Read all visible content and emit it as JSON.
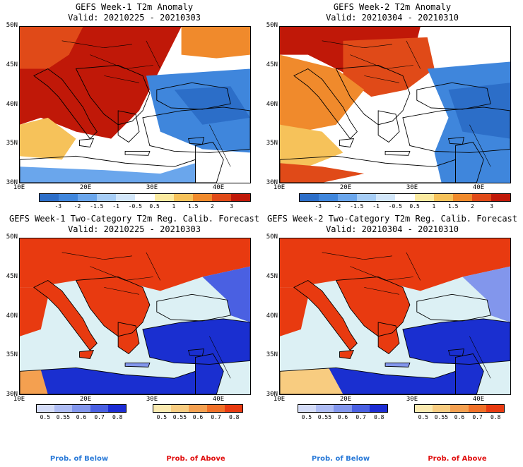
{
  "panels": [
    {
      "title": "GEFS Week-1 T2m Anomaly",
      "valid": "Valid: 20210225 - 20210303",
      "kind": "anomaly",
      "week": 1
    },
    {
      "title": "GEFS Week-2 T2m Anomaly",
      "valid": "Valid: 20210304 - 20210310",
      "kind": "anomaly",
      "week": 2
    },
    {
      "title": "GEFS Week-1 Two-Category T2m Reg. Calib. Forecast",
      "valid": "Valid: 20210225 - 20210303",
      "kind": "prob",
      "week": 1
    },
    {
      "title": "GEFS Week-2 Two-Category T2m Reg. Calib. Forecast",
      "valid": "Valid: 20210304 - 20210310",
      "kind": "prob",
      "week": 2
    }
  ],
  "lat_labels": [
    "50N",
    "45N",
    "40N",
    "35N",
    "30N"
  ],
  "lon_labels": [
    "10E",
    "20E",
    "30E",
    "40E"
  ],
  "anomaly_colorbar": {
    "labels": [
      "-3",
      "-2",
      "-1.5",
      "-1",
      "-0.5",
      "0.5",
      "1",
      "1.5",
      "2",
      "3"
    ],
    "colors": [
      "#2c6ec8",
      "#3f86dc",
      "#6aa6ec",
      "#a6cdf6",
      "#d3e7fa",
      "#ffffff",
      "#fbeaa0",
      "#f6c25a",
      "#f08a2c",
      "#e04a18",
      "#c01808"
    ]
  },
  "prob_below_colorbar": {
    "labels": [
      "0.5",
      "0.55",
      "0.6",
      "0.7",
      "0.8"
    ],
    "colors": [
      "#d4dcf8",
      "#aebcf4",
      "#8296ec",
      "#4a60e2",
      "#1c2cd4"
    ]
  },
  "prob_above_colorbar": {
    "labels": [
      "0.5",
      "0.55",
      "0.6",
      "0.7",
      "0.8"
    ],
    "colors": [
      "#fbeab0",
      "#f8cc80",
      "#f4a050",
      "#f07028",
      "#e83a10"
    ]
  },
  "legend": {
    "below": "Prob. of Below",
    "above": "Prob. of Above",
    "below_color": "#2a7ad8",
    "above_color": "#e01010"
  },
  "map_colors": {
    "sea": "#dcf0f4",
    "blue_strong": "#1a2fd0",
    "red_strong": "#e83a10"
  }
}
